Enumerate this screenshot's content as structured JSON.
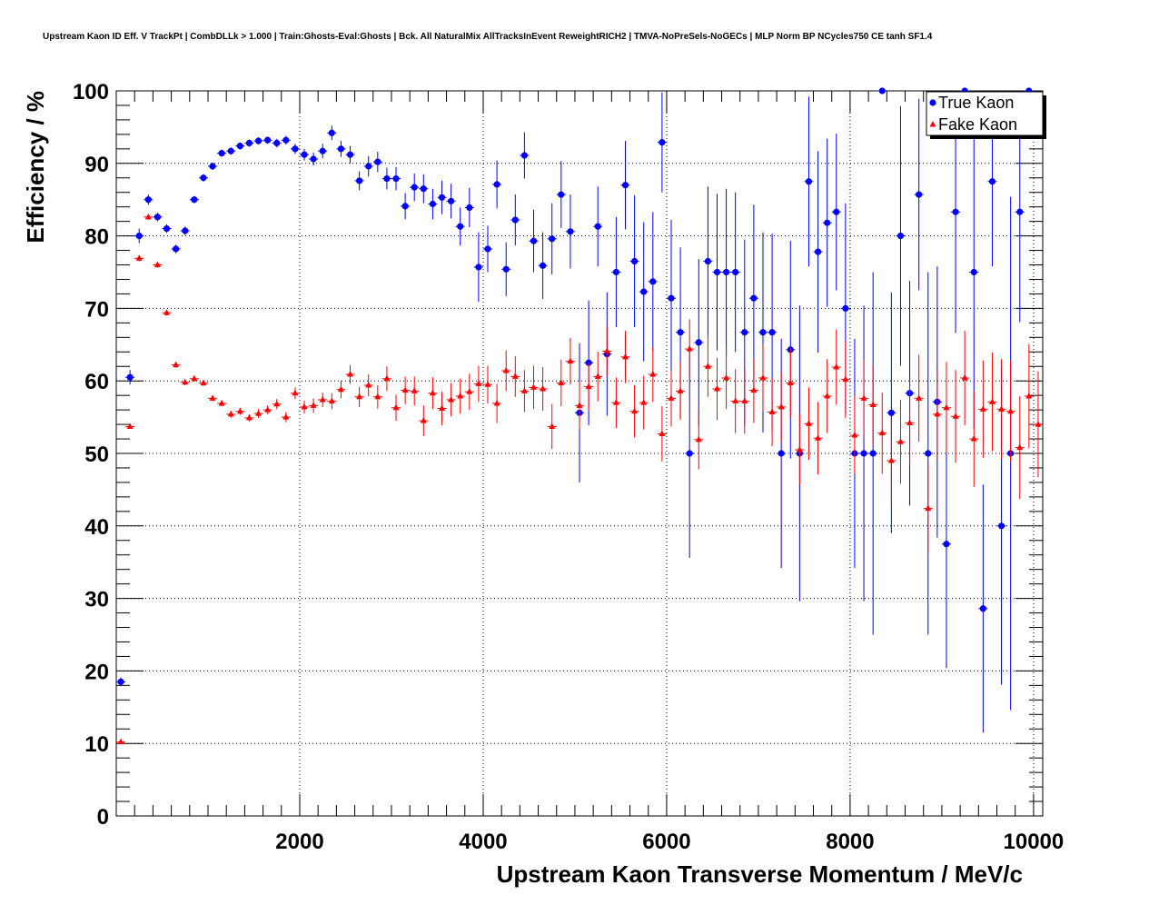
{
  "chart_data": {
    "type": "scatter",
    "title": "Upstream Kaon ID Eff. V TrackPt | CombDLLk > 1.000 | Train:Ghosts-Eval:Ghosts | Bck. All NaturalMix AllTracksInEvent ReweightRICH2 | TMVA-NoPreSels-NoGECs | MLP Norm BP NCycles750 CE tanh SF1.4",
    "xlabel": "Upstream Kaon Transverse Momentum / MeV/c",
    "ylabel": "Efficiency / %",
    "xlim": [
      0,
      10100
    ],
    "ylim": [
      0,
      100
    ],
    "x_ticks": [
      2000,
      4000,
      6000,
      8000,
      10000
    ],
    "y_ticks": [
      0,
      10,
      20,
      30,
      40,
      50,
      60,
      70,
      80,
      90,
      100
    ],
    "grid": true,
    "legend_position": "top-right",
    "bin_width": 100,
    "series": [
      {
        "name": "True Kaon",
        "color": "#0000ff",
        "marker": "circle",
        "x": [
          50,
          150,
          250,
          350,
          450,
          550,
          650,
          750,
          850,
          950,
          1050,
          1150,
          1250,
          1350,
          1450,
          1550,
          1650,
          1750,
          1850,
          1950,
          2050,
          2150,
          2250,
          2350,
          2450,
          2550,
          2650,
          2750,
          2850,
          2950,
          3050,
          3150,
          3250,
          3350,
          3450,
          3550,
          3650,
          3750,
          3850,
          3950,
          4050,
          4150,
          4250,
          4350,
          4450,
          4550,
          4650,
          4750,
          4850,
          4950,
          5050,
          5150,
          5250,
          5350,
          5450,
          5550,
          5650,
          5750,
          5850,
          5950,
          6050,
          6150,
          6250,
          6350,
          6450,
          6550,
          6650,
          6750,
          6850,
          6950,
          7050,
          7150,
          7250,
          7350,
          7450,
          7550,
          7650,
          7750,
          7850,
          7950,
          8050,
          8150,
          8250,
          8350,
          8450,
          8550,
          8650,
          8750,
          8850,
          8950,
          9050,
          9150,
          9250,
          9350,
          9450,
          9550,
          9650,
          9750,
          9850,
          9950
        ],
        "y": [
          18.5,
          60.5,
          80.0,
          85.0,
          82.6,
          81.0,
          78.2,
          80.7,
          85.0,
          88.0,
          89.6,
          91.4,
          91.7,
          92.4,
          92.8,
          93.1,
          93.2,
          92.8,
          93.2,
          92.0,
          91.2,
          90.6,
          91.7,
          94.2,
          92.0,
          91.2,
          87.6,
          89.6,
          90.2,
          87.9,
          87.9,
          84.1,
          86.7,
          86.5,
          84.4,
          85.3,
          84.8,
          81.3,
          83.9,
          75.7,
          78.2,
          87.1,
          75.4,
          82.2,
          91.1,
          79.3,
          75.9,
          79.6,
          85.7,
          80.6,
          55.6,
          62.5,
          81.3,
          63.7,
          75.0,
          87.0,
          76.5,
          72.3,
          73.7,
          92.9,
          71.4,
          66.7,
          50.0,
          65.3,
          76.5,
          75.0,
          75.0,
          75.0,
          66.7,
          71.4,
          66.7,
          66.7,
          50.0,
          64.3,
          50.0,
          87.5,
          77.8,
          81.8,
          83.3,
          70.0,
          50.0,
          50.0,
          50.0,
          100.0,
          55.6,
          80.0,
          58.3,
          85.7,
          50.0,
          57.1,
          37.5,
          83.3,
          100.0,
          75.0,
          28.6,
          87.5,
          40.0,
          50.0,
          83.3,
          100.0
        ],
        "err": [
          0.6,
          1.0,
          1.0,
          0.7,
          0.6,
          0.6,
          0.6,
          0.6,
          0.5,
          0.5,
          0.5,
          0.5,
          0.5,
          0.5,
          0.5,
          0.5,
          0.5,
          0.6,
          0.6,
          0.7,
          0.8,
          0.9,
          1.0,
          1.0,
          1.1,
          1.2,
          1.3,
          1.4,
          1.4,
          1.5,
          1.6,
          1.8,
          1.9,
          2.0,
          2.1,
          2.3,
          2.4,
          2.6,
          2.7,
          4.8,
          3.2,
          3.3,
          3.7,
          3.5,
          3.2,
          4.3,
          4.6,
          4.9,
          4.6,
          5.1,
          9.6,
          8.6,
          5.5,
          8.5,
          7.6,
          6.1,
          9.1,
          9.6,
          9.6,
          6.9,
          10.8,
          11.7,
          14.4,
          11.5,
          10.3,
          10.8,
          11.5,
          11.0,
          12.8,
          12.9,
          13.8,
          13.6,
          15.8,
          15.0,
          20.4,
          11.7,
          13.9,
          11.6,
          10.8,
          14.5,
          15.8,
          20.4,
          25.0,
          0.0,
          16.6,
          17.9,
          15.5,
          13.2,
          25.0,
          18.7,
          17.1,
          16.7,
          0.0,
          21.7,
          17.1,
          11.7,
          21.9,
          35.4,
          15.2,
          0.0
        ]
      },
      {
        "name": "Fake Kaon",
        "color": "#ff0000",
        "marker": "triangle",
        "x": [
          50,
          150,
          250,
          350,
          450,
          550,
          650,
          750,
          850,
          950,
          1050,
          1150,
          1250,
          1350,
          1450,
          1550,
          1650,
          1750,
          1850,
          1950,
          2050,
          2150,
          2250,
          2350,
          2450,
          2550,
          2650,
          2750,
          2850,
          2950,
          3050,
          3150,
          3250,
          3350,
          3450,
          3550,
          3650,
          3750,
          3850,
          3950,
          4050,
          4150,
          4250,
          4350,
          4450,
          4550,
          4650,
          4750,
          4850,
          4950,
          5050,
          5150,
          5250,
          5350,
          5450,
          5550,
          5650,
          5750,
          5850,
          5950,
          6050,
          6150,
          6250,
          6350,
          6450,
          6550,
          6650,
          6750,
          6850,
          6950,
          7050,
          7150,
          7250,
          7350,
          7450,
          7550,
          7650,
          7750,
          7850,
          7950,
          8050,
          8150,
          8250,
          8350,
          8450,
          8550,
          8650,
          8750,
          8850,
          8950,
          9050,
          9150,
          9250,
          9350,
          9450,
          9550,
          9650,
          9750,
          9850,
          9950,
          10050
        ],
        "y": [
          10.2,
          53.7,
          76.9,
          82.6,
          76.0,
          69.4,
          62.2,
          59.8,
          60.3,
          59.7,
          57.6,
          56.9,
          55.4,
          55.8,
          54.9,
          55.5,
          56.0,
          56.8,
          55.0,
          58.3,
          56.4,
          56.6,
          57.4,
          57.2,
          58.8,
          60.9,
          57.8,
          59.4,
          57.8,
          60.3,
          56.3,
          58.7,
          58.6,
          54.5,
          58.3,
          56.2,
          57.4,
          57.9,
          58.5,
          59.6,
          59.5,
          56.9,
          61.4,
          60.6,
          58.6,
          59.1,
          58.9,
          53.7,
          59.7,
          62.7,
          56.6,
          59.2,
          60.6,
          64.1,
          57.0,
          63.3,
          55.8,
          57.0,
          60.9,
          52.7,
          57.6,
          58.6,
          64.4,
          51.9,
          62.0,
          58.9,
          60.4,
          57.2,
          57.2,
          58.7,
          60.4,
          55.7,
          56.4,
          59.7,
          50.5,
          54.1,
          52.1,
          57.9,
          61.9,
          60.2,
          52.5,
          57.6,
          56.7,
          52.8,
          49.0,
          51.6,
          54.2,
          57.6,
          42.4,
          55.4,
          56.3,
          55.1,
          60.4,
          52.0,
          56.1,
          57.1,
          56.1,
          55.8,
          50.8,
          57.9,
          54.0
        ],
        "err": [
          0.2,
          0.3,
          0.4,
          0.4,
          0.4,
          0.4,
          0.4,
          0.4,
          0.4,
          0.4,
          0.4,
          0.4,
          0.5,
          0.5,
          0.5,
          0.6,
          0.6,
          0.7,
          0.7,
          0.8,
          0.9,
          1.0,
          1.0,
          1.1,
          1.2,
          1.3,
          1.4,
          1.5,
          1.6,
          1.7,
          1.8,
          1.9,
          2.0,
          2.1,
          2.2,
          2.3,
          2.3,
          2.4,
          2.5,
          2.5,
          2.6,
          2.7,
          2.8,
          2.8,
          2.9,
          3.0,
          3.0,
          3.1,
          3.2,
          3.2,
          3.3,
          3.3,
          3.4,
          3.4,
          3.5,
          3.6,
          3.6,
          3.7,
          3.8,
          3.8,
          3.9,
          4.0,
          4.1,
          4.1,
          4.2,
          4.3,
          4.3,
          4.4,
          4.5,
          4.5,
          4.6,
          4.7,
          4.8,
          4.8,
          4.9,
          5.0,
          5.0,
          5.1,
          5.2,
          5.3,
          5.4,
          5.4,
          5.5,
          5.6,
          5.7,
          5.8,
          5.9,
          6.0,
          6.1,
          6.2,
          6.3,
          6.4,
          6.5,
          6.6,
          6.7,
          6.8,
          6.9,
          7.0,
          7.1,
          7.2,
          7.3
        ]
      }
    ]
  }
}
